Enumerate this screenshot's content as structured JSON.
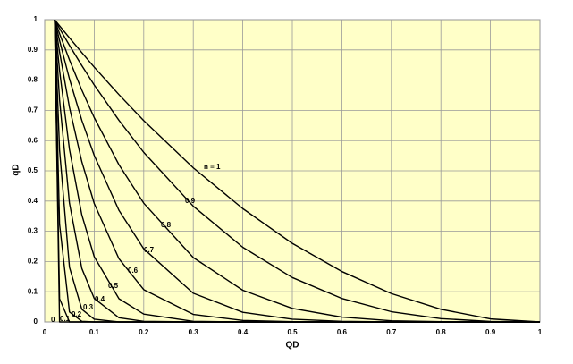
{
  "chart_data": {
    "type": "line",
    "x_label": "QD",
    "y_label": "qD",
    "x": [
      0.02,
      0.03,
      0.05,
      0.075,
      0.1,
      0.15,
      0.2,
      0.3,
      0.4,
      0.5,
      0.6,
      0.7,
      0.8,
      0.9,
      1.0
    ],
    "series": [
      {
        "name": "n = 1",
        "color": "#000000",
        "values": [
          1,
          0.98,
          0.94,
          0.891,
          0.843,
          0.752,
          0.666,
          0.51,
          0.375,
          0.26,
          0.167,
          0.094,
          0.042,
          0.01,
          0
        ]
      },
      {
        "name": "0.9",
        "color": "#000000",
        "values": [
          1,
          0.971,
          0.915,
          0.848,
          0.784,
          0.667,
          0.561,
          0.383,
          0.247,
          0.147,
          0.078,
          0.034,
          0.011,
          0.0015,
          0
        ]
      },
      {
        "name": "0.8",
        "color": "#000000",
        "values": [
          1,
          0.954,
          0.867,
          0.767,
          0.676,
          0.52,
          0.393,
          0.213,
          0.105,
          0.045,
          0.016,
          0.004,
          0.001,
          0,
          0
        ]
      },
      {
        "name": "0.7",
        "color": "#000000",
        "values": [
          1,
          0.931,
          0.804,
          0.667,
          0.551,
          0.369,
          0.242,
          0.095,
          0.032,
          0.009,
          0.002,
          0,
          0,
          0,
          0
        ]
      },
      {
        "name": "0.6",
        "color": "#000000",
        "values": [
          1,
          0.893,
          0.71,
          0.53,
          0.392,
          0.209,
          0.107,
          0.025,
          0.005,
          0.001,
          0,
          0,
          0,
          0,
          0
        ]
      },
      {
        "name": "0.5",
        "color": "#000000",
        "values": [
          1,
          0.832,
          0.571,
          0.354,
          0.216,
          0.077,
          0.026,
          0.002,
          0,
          0,
          0,
          0,
          0,
          0,
          0
        ]
      },
      {
        "name": "0.4",
        "color": "#000000",
        "values": [
          1,
          0.735,
          0.393,
          0.177,
          0.078,
          0.014,
          0.002,
          0,
          0,
          0,
          0,
          0,
          0,
          0,
          0
        ]
      },
      {
        "name": "0.3",
        "color": "#000000",
        "values": [
          1,
          0.569,
          0.181,
          0.042,
          0.009,
          0,
          0,
          0,
          0,
          0,
          0,
          0,
          0,
          0,
          0
        ]
      },
      {
        "name": "0.2",
        "color": "#000000",
        "values": [
          1,
          0.324,
          0.033,
          0.002,
          0,
          0,
          0,
          0,
          0,
          0,
          0,
          0,
          0,
          0,
          0
        ]
      },
      {
        "name": "0.1",
        "color": "#000000",
        "values": [
          1,
          0.077,
          0,
          0,
          0,
          0,
          0,
          0,
          0,
          0,
          0,
          0,
          0,
          0,
          0
        ]
      },
      {
        "name": "0",
        "color": "#000000",
        "values": [
          1,
          0,
          0,
          0,
          0,
          0,
          0,
          0,
          0,
          0,
          0,
          0,
          0,
          0,
          0
        ]
      }
    ],
    "xlim": [
      0,
      1
    ],
    "ylim": [
      0,
      1
    ],
    "xticks": [
      0,
      0.1,
      0.2,
      0.3,
      0.4,
      0.5,
      0.6,
      0.7,
      0.8,
      0.9,
      1
    ],
    "yticks": [
      0,
      0.1,
      0.2,
      0.3,
      0.4,
      0.5,
      0.6,
      0.7,
      0.8,
      0.9,
      1
    ],
    "grid": true,
    "background": "#ffffc8"
  }
}
